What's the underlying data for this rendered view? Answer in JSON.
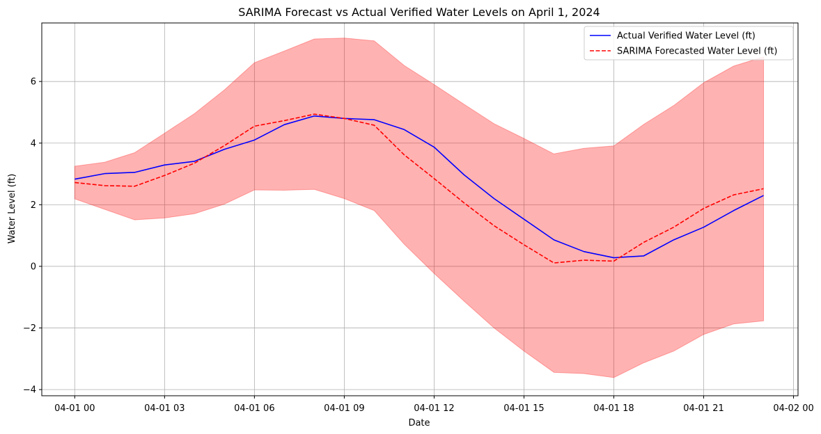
{
  "chart_data": {
    "type": "line",
    "title": "SARIMA Forecast vs Actual Verified Water Levels on April 1, 2024",
    "xlabel": "Date",
    "ylabel": "Water Level (ft)",
    "x_ticks": [
      "04-01 00",
      "04-01 03",
      "04-01 06",
      "04-01 09",
      "04-01 12",
      "04-01 15",
      "04-01 18",
      "04-01 21",
      "04-02 00"
    ],
    "x_tick_hours": [
      0,
      3,
      6,
      9,
      12,
      15,
      18,
      21,
      24
    ],
    "xlim_hours": [
      -1.1,
      24.15
    ],
    "y_ticks": [
      -4,
      -2,
      0,
      2,
      4,
      6
    ],
    "y_tick_labels": [
      "−4",
      "−2",
      "0",
      "2",
      "4",
      "6"
    ],
    "ylim": [
      -4.2,
      7.9
    ],
    "grid": true,
    "legend_position": "upper right",
    "x_hours": [
      0,
      1,
      2,
      3,
      4,
      5,
      6,
      7,
      8,
      9,
      10,
      11,
      12,
      13,
      14,
      15,
      16,
      17,
      18,
      19,
      20,
      21,
      22,
      23
    ],
    "series": [
      {
        "name": "Actual Verified Water Level (ft)",
        "style": "solid",
        "color": "#0000ff",
        "values": [
          2.83,
          3.01,
          3.05,
          3.29,
          3.41,
          3.8,
          4.1,
          4.6,
          4.88,
          4.8,
          4.76,
          4.44,
          3.87,
          2.97,
          2.2,
          1.53,
          0.86,
          0.48,
          0.28,
          0.34,
          0.86,
          1.27,
          1.81,
          2.3
        ]
      },
      {
        "name": "SARIMA Forecasted Water Level (ft)",
        "style": "dashed",
        "color": "#ff0000",
        "values": [
          2.72,
          2.62,
          2.6,
          2.95,
          3.35,
          3.92,
          4.55,
          4.73,
          4.94,
          4.8,
          4.58,
          3.62,
          2.85,
          2.06,
          1.32,
          0.7,
          0.11,
          0.2,
          0.17,
          0.78,
          1.27,
          1.88,
          2.32,
          2.52
        ]
      }
    ],
    "confidence_band": {
      "color": "#ff0000",
      "opacity": 0.3,
      "upper": [
        3.25,
        3.38,
        3.69,
        4.32,
        4.96,
        5.73,
        6.61,
        6.99,
        7.38,
        7.41,
        7.32,
        6.52,
        5.9,
        5.26,
        4.63,
        4.15,
        3.65,
        3.83,
        3.91,
        4.61,
        5.22,
        5.96,
        6.5,
        6.8
      ],
      "lower": [
        2.19,
        1.85,
        1.51,
        1.57,
        1.71,
        2.02,
        2.48,
        2.47,
        2.5,
        2.2,
        1.81,
        0.72,
        -0.23,
        -1.13,
        -2.0,
        -2.75,
        -3.44,
        -3.48,
        -3.61,
        -3.13,
        -2.75,
        -2.21,
        -1.87,
        -1.77
      ]
    }
  }
}
